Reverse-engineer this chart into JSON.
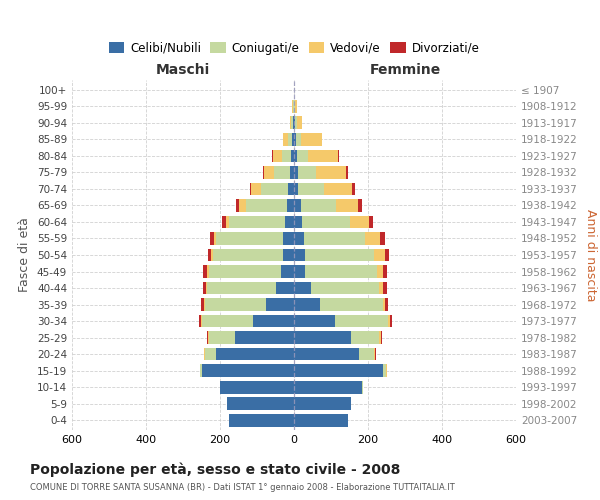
{
  "age_groups": [
    "0-4",
    "5-9",
    "10-14",
    "15-19",
    "20-24",
    "25-29",
    "30-34",
    "35-39",
    "40-44",
    "45-49",
    "50-54",
    "55-59",
    "60-64",
    "65-69",
    "70-74",
    "75-79",
    "80-84",
    "85-89",
    "90-94",
    "95-99",
    "100+"
  ],
  "birth_years": [
    "2003-2007",
    "1998-2002",
    "1993-1997",
    "1988-1992",
    "1983-1987",
    "1978-1982",
    "1973-1977",
    "1968-1972",
    "1963-1967",
    "1958-1962",
    "1953-1957",
    "1948-1952",
    "1943-1947",
    "1938-1942",
    "1933-1937",
    "1928-1932",
    "1923-1927",
    "1918-1922",
    "1913-1917",
    "1908-1912",
    "≤ 1907"
  ],
  "maschi": {
    "celibi": [
      175,
      180,
      200,
      250,
      210,
      160,
      110,
      75,
      50,
      35,
      30,
      30,
      25,
      20,
      15,
      10,
      8,
      5,
      2,
      1,
      1
    ],
    "coniugati": [
      0,
      0,
      0,
      5,
      30,
      70,
      140,
      165,
      185,
      195,
      190,
      180,
      150,
      110,
      75,
      45,
      25,
      10,
      5,
      2,
      0
    ],
    "vedovi": [
      0,
      0,
      0,
      0,
      2,
      2,
      2,
      2,
      2,
      5,
      5,
      5,
      10,
      20,
      25,
      25,
      25,
      15,
      5,
      2,
      0
    ],
    "divorziati": [
      0,
      0,
      0,
      0,
      2,
      3,
      5,
      8,
      10,
      10,
      8,
      12,
      10,
      8,
      5,
      3,
      2,
      0,
      0,
      0,
      0
    ]
  },
  "femmine": {
    "nubili": [
      145,
      155,
      185,
      240,
      175,
      155,
      110,
      70,
      45,
      30,
      30,
      28,
      22,
      18,
      12,
      10,
      8,
      5,
      2,
      0,
      0
    ],
    "coniugate": [
      0,
      0,
      2,
      8,
      40,
      75,
      145,
      170,
      185,
      195,
      185,
      165,
      130,
      95,
      70,
      50,
      30,
      15,
      5,
      2,
      0
    ],
    "vedove": [
      0,
      0,
      0,
      2,
      5,
      5,
      5,
      5,
      10,
      15,
      30,
      40,
      50,
      60,
      75,
      80,
      80,
      55,
      15,
      5,
      0
    ],
    "divorziate": [
      0,
      0,
      0,
      0,
      2,
      3,
      5,
      8,
      12,
      12,
      12,
      12,
      12,
      10,
      8,
      5,
      3,
      2,
      0,
      0,
      0
    ]
  },
  "colors": {
    "celibi": "#3a6ea5",
    "coniugati": "#c5d9a0",
    "vedovi": "#f5c96a",
    "divorziati": "#c0282a"
  },
  "legend_labels": [
    "Celibi/Nubili",
    "Coniugati/e",
    "Vedovi/e",
    "Divorziati/e"
  ],
  "title": "Popolazione per età, sesso e stato civile - 2008",
  "subtitle": "COMUNE DI TORRE SANTA SUSANNA (BR) - Dati ISTAT 1° gennaio 2008 - Elaborazione TUTTAITALIA.IT",
  "label_maschi": "Maschi",
  "label_femmine": "Femmine",
  "ylabel_left": "Fasce di età",
  "ylabel_right": "Anni di nascita",
  "xlim": 600,
  "bg_color": "#ffffff",
  "grid_color": "#cccccc"
}
